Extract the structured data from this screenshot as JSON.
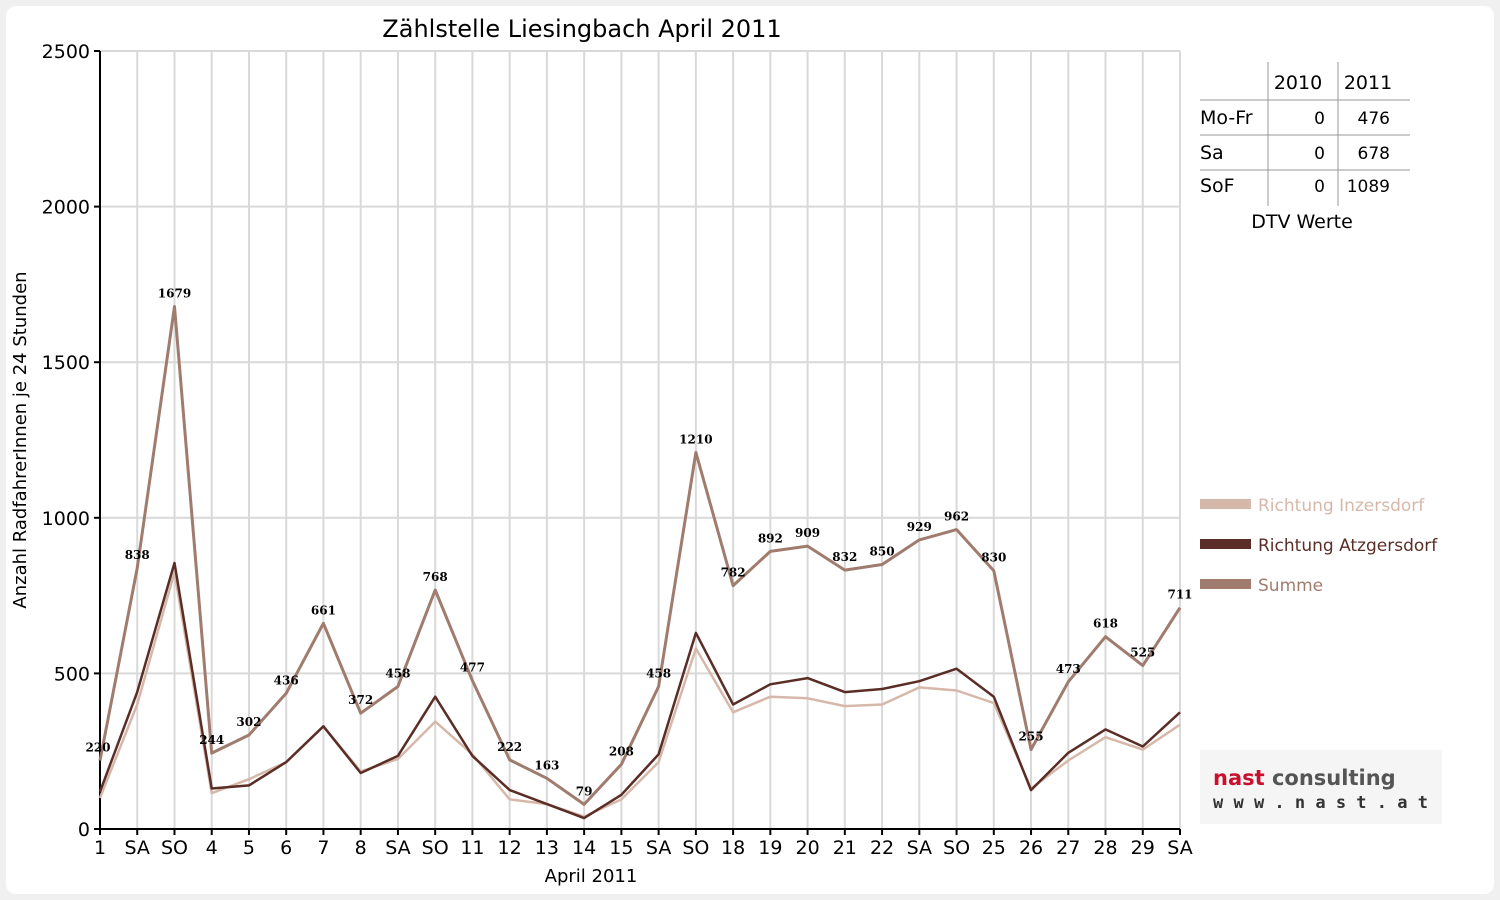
{
  "chart_data": {
    "type": "line",
    "title": "Zählstelle Liesingbach April 2011",
    "xlabel": "April 2011",
    "ylabel": "Anzahl RadfahrerInnen je 24 Stunden",
    "ylim": [
      0,
      2500
    ],
    "yticks": [
      0,
      500,
      1000,
      1500,
      2000,
      2500
    ],
    "grid": true,
    "legend_position": "right",
    "categories": [
      "1",
      "SA",
      "SO",
      "4",
      "5",
      "6",
      "7",
      "8",
      "SA",
      "SO",
      "11",
      "12",
      "13",
      "14",
      "15",
      "SA",
      "SO",
      "18",
      "19",
      "20",
      "21",
      "22",
      "SA",
      "SO",
      "25",
      "26",
      "27",
      "28",
      "29",
      "SA"
    ],
    "category_colors": [
      "#000000",
      "#000000",
      "#e00000",
      "#000000",
      "#000000",
      "#000000",
      "#000000",
      "#000000",
      "#000000",
      "#e00000",
      "#000000",
      "#000000",
      "#000000",
      "#000000",
      "#000000",
      "#000000",
      "#e00000",
      "#000000",
      "#000000",
      "#000000",
      "#000000",
      "#000000",
      "#000000",
      "#e00000",
      "#e00000",
      "#000000",
      "#000000",
      "#000000",
      "#000000",
      "#000000"
    ],
    "series": [
      {
        "name": "Richtung Inzersdorf",
        "color": "#d6b8aa",
        "values": [
          100,
          400,
          825,
          115,
          160,
          215,
          330,
          185,
          225,
          345,
          240,
          95,
          80,
          40,
          95,
          215,
          580,
          375,
          425,
          420,
          395,
          400,
          455,
          445,
          405,
          130,
          220,
          295,
          255,
          335
        ]
      },
      {
        "name": "Richtung Atzgersdorf",
        "color": "#5a2e26",
        "values": [
          120,
          440,
          855,
          130,
          140,
          215,
          330,
          180,
          235,
          425,
          235,
          125,
          80,
          35,
          110,
          240,
          630,
          400,
          465,
          485,
          440,
          450,
          475,
          515,
          425,
          125,
          245,
          320,
          265,
          375
        ]
      },
      {
        "name": "Summe",
        "color": "#a07c6e",
        "values": [
          220,
          838,
          1679,
          244,
          302,
          436,
          661,
          372,
          458,
          768,
          477,
          222,
          163,
          79,
          208,
          458,
          1210,
          782,
          892,
          909,
          832,
          850,
          929,
          962,
          830,
          255,
          473,
          618,
          525,
          711
        ]
      }
    ],
    "data_labels": [
      "220",
      "838",
      "1679",
      "244",
      "302",
      "436",
      "661",
      "372",
      "458",
      "768",
      "477",
      "222",
      "163",
      "79",
      "208",
      "458",
      "1210",
      "782",
      "892",
      "909",
      "832",
      "850",
      "929",
      "962",
      "830",
      "255",
      "473",
      "618",
      "525",
      "711"
    ]
  },
  "dtv_table": {
    "caption": "DTV Werte",
    "headers": [
      "",
      "2010",
      "2011"
    ],
    "rows": [
      {
        "label": "Mo-Fr",
        "v2010": "0",
        "v2011": "476"
      },
      {
        "label": "Sa",
        "v2010": "0",
        "v2011": "678"
      },
      {
        "label": "SoF",
        "v2010": "0",
        "v2011": "1089"
      }
    ]
  },
  "logo": {
    "name_part1": "nast",
    "name_part2": " consulting",
    "url": "w w w . n a s t . a t",
    "color1": "#c8102e",
    "color2": "#555555"
  }
}
